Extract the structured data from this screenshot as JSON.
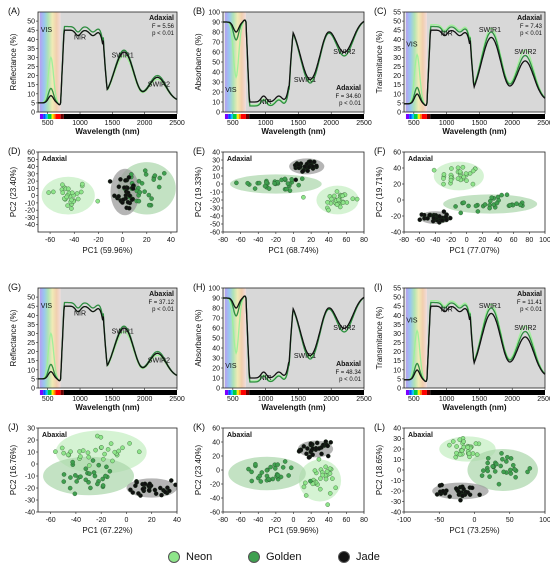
{
  "colors": {
    "neon_fill": "#8ee58a",
    "neon_line": "#9ff09a",
    "golden_fill": "#3f9f4f",
    "golden_line": "#2e8d40",
    "jade_fill": "#111111",
    "jade_line": "#111111",
    "plot_bg": "#e6e6e6",
    "ellipse_neon": "#c3eec0",
    "ellipse_golden": "#a9d6a9",
    "ellipse_jade": "#9c9c9c"
  },
  "legend": [
    {
      "name": "Neon",
      "color": "#8ee58a"
    },
    {
      "name": "Golden",
      "color": "#3f9f4f"
    },
    {
      "name": "Jade",
      "color": "#111111"
    }
  ],
  "chart_data": [
    {
      "id": "A",
      "type": "line",
      "panel_label": "(A)",
      "ylabel": "Reflectance (%)",
      "xlabel": "Wavelength (nm)",
      "xlim": [
        350,
        2500
      ],
      "ylim": [
        0,
        55
      ],
      "xticks": [
        500,
        1000,
        1500,
        2000,
        2500
      ],
      "yticks": [
        0,
        5,
        10,
        15,
        20,
        25,
        30,
        35,
        40,
        45,
        50
      ],
      "regions": [
        "VIS",
        "NIR",
        "SWIR1",
        "SWIR2"
      ],
      "side": "Adaxial",
      "stat_f": "F = 5.56",
      "stat_p": "p < 0.01"
    },
    {
      "id": "B",
      "type": "line",
      "panel_label": "(B)",
      "ylabel": "Absorbance (%)",
      "xlabel": "Wavelength (nm)",
      "xlim": [
        350,
        2500
      ],
      "ylim": [
        0,
        100
      ],
      "xticks": [
        500,
        1000,
        1500,
        2000,
        2500
      ],
      "yticks": [
        0,
        10,
        20,
        30,
        40,
        50,
        60,
        70,
        80,
        90,
        100
      ],
      "regions": [
        "VIS",
        "NIR",
        "SWIR1",
        "SWIR2"
      ],
      "side": "Adaxial",
      "stat_f": "F = 34.60",
      "stat_p": "p < 0.01"
    },
    {
      "id": "C",
      "type": "line",
      "panel_label": "(C)",
      "ylabel": "Transmitance (%)",
      "xlabel": "Wavelength (nm)",
      "xlim": [
        350,
        2500
      ],
      "ylim": [
        0,
        55
      ],
      "xticks": [
        500,
        1000,
        1500,
        2000,
        2500
      ],
      "yticks": [
        0,
        5,
        10,
        15,
        20,
        25,
        30,
        35,
        40,
        45,
        50,
        55
      ],
      "regions": [
        "VIS",
        "NIR",
        "SWIR1",
        "SWIR2"
      ],
      "side": "Adaxial",
      "stat_f": "F = 7.43",
      "stat_p": "p < 0.01"
    },
    {
      "id": "D",
      "type": "scatter",
      "panel_label": "(D)",
      "side": "Adaxial",
      "xlabel": "PC1 (59.96%)",
      "ylabel": "PC2 (23.40%)",
      "xlim": [
        -70,
        45
      ],
      "ylim": [
        -50,
        60
      ],
      "xticks": [
        -60,
        -40,
        -20,
        0,
        20,
        40
      ],
      "yticks": [
        -40,
        -30,
        -20,
        -10,
        0,
        10,
        20,
        30,
        40,
        50,
        60
      ],
      "clusters": [
        {
          "name": "Neon",
          "cx": -45,
          "cy": 0,
          "sx": 11,
          "sy": 13
        },
        {
          "name": "Golden",
          "cx": 20,
          "cy": 10,
          "sx": 12,
          "sy": 18
        },
        {
          "name": "Jade",
          "cx": 2,
          "cy": 5,
          "sx": 6,
          "sy": 16
        }
      ]
    },
    {
      "id": "E",
      "type": "scatter",
      "panel_label": "(E)",
      "side": "Adaxial",
      "xlabel": "PC1 (68.74%)",
      "ylabel": "PC2 (19.33%)",
      "xlim": [
        -80,
        80
      ],
      "ylim": [
        -60,
        40
      ],
      "xticks": [
        -80,
        -60,
        -40,
        -20,
        0,
        20,
        40,
        60,
        80
      ],
      "yticks": [
        -60,
        -50,
        -40,
        -30,
        -20,
        -10,
        0,
        10,
        20,
        30,
        40
      ],
      "clusters": [
        {
          "name": "Neon",
          "cx": 50,
          "cy": -20,
          "sx": 12,
          "sy": 9
        },
        {
          "name": "Golden",
          "cx": -20,
          "cy": 0,
          "sx": 26,
          "sy": 6
        },
        {
          "name": "Jade",
          "cx": 15,
          "cy": 22,
          "sx": 10,
          "sy": 5
        }
      ]
    },
    {
      "id": "F",
      "type": "scatter",
      "panel_label": "(F)",
      "side": "Adaxial",
      "xlabel": "PC1 (77.07%)",
      "ylabel": "PC2 (19.71%)",
      "xlim": [
        -80,
        100
      ],
      "ylim": [
        -40,
        60
      ],
      "xticks": [
        -80,
        -60,
        -40,
        -20,
        0,
        20,
        40,
        60,
        80,
        100
      ],
      "yticks": [
        -40,
        -20,
        0,
        20,
        40,
        60
      ],
      "clusters": [
        {
          "name": "Neon",
          "cx": -10,
          "cy": 30,
          "sx": 16,
          "sy": 9
        },
        {
          "name": "Golden",
          "cx": 30,
          "cy": -5,
          "sx": 30,
          "sy": 6
        },
        {
          "name": "Jade",
          "cx": -40,
          "cy": -22,
          "sx": 10,
          "sy": 4
        }
      ]
    },
    {
      "id": "G",
      "type": "line",
      "panel_label": "(G)",
      "ylabel": "Reflectance (%)",
      "xlabel": "Wavelength (nm)",
      "xlim": [
        350,
        2500
      ],
      "ylim": [
        0,
        55
      ],
      "xticks": [
        500,
        1000,
        1500,
        2000,
        2500
      ],
      "yticks": [
        0,
        5,
        10,
        15,
        20,
        25,
        30,
        35,
        40,
        45,
        50
      ],
      "regions": [
        "VIS",
        "NIR",
        "SWIR1",
        "SWIR2"
      ],
      "side": "Abaxial",
      "stat_f": "F = 37.12",
      "stat_p": "p < 0.01"
    },
    {
      "id": "H",
      "type": "line",
      "panel_label": "(H)",
      "ylabel": "Absorbance (%)",
      "xlabel": "Wavelength (nm)",
      "xlim": [
        350,
        2500
      ],
      "ylim": [
        0,
        100
      ],
      "xticks": [
        500,
        1000,
        1500,
        2000,
        2500
      ],
      "yticks": [
        0,
        10,
        20,
        30,
        40,
        50,
        60,
        70,
        80,
        90,
        100
      ],
      "regions": [
        "VIS",
        "NIR",
        "SWIR1",
        "SWIR2"
      ],
      "side": "Abaxial",
      "stat_f": "F = 48.34",
      "stat_p": "p < 0.01"
    },
    {
      "id": "I",
      "type": "line",
      "panel_label": "(I)",
      "ylabel": "Transmitance (%)",
      "xlabel": "Wavelength (nm)",
      "xlim": [
        350,
        2500
      ],
      "ylim": [
        0,
        55
      ],
      "xticks": [
        500,
        1000,
        1500,
        2000,
        2500
      ],
      "yticks": [
        0,
        5,
        10,
        15,
        20,
        25,
        30,
        35,
        40,
        45,
        50,
        55
      ],
      "regions": [
        "VIS",
        "NIR",
        "SWIR1",
        "SWIR2"
      ],
      "side": "Abaxial",
      "stat_f": "F = 11.41",
      "stat_p": "p < 0.01"
    },
    {
      "id": "J",
      "type": "scatter",
      "panel_label": "(J)",
      "side": "Abaxial",
      "xlabel": "PC1 (67.22%)",
      "ylabel": "PC2 (16.76%)",
      "xlim": [
        -70,
        40
      ],
      "ylim": [
        -40,
        30
      ],
      "xticks": [
        -60,
        -40,
        -20,
        0,
        20,
        40
      ],
      "yticks": [
        -40,
        -30,
        -20,
        -10,
        0,
        10,
        20,
        30
      ],
      "clusters": [
        {
          "name": "Neon",
          "cx": -20,
          "cy": 10,
          "sx": 18,
          "sy": 9
        },
        {
          "name": "Golden",
          "cx": -30,
          "cy": -10,
          "sx": 18,
          "sy": 8
        },
        {
          "name": "Jade",
          "cx": 20,
          "cy": -20,
          "sx": 10,
          "sy": 4
        }
      ]
    },
    {
      "id": "K",
      "type": "scatter",
      "panel_label": "(K)",
      "side": "Abaxial",
      "xlabel": "PC1 (59.96%)",
      "ylabel": "PC2 (23.40%)",
      "xlim": [
        -80,
        80
      ],
      "ylim": [
        -60,
        60
      ],
      "xticks": [
        -80,
        -60,
        -40,
        -20,
        0,
        20,
        40,
        60,
        80
      ],
      "yticks": [
        -60,
        -40,
        -20,
        0,
        20,
        40,
        60
      ],
      "clusters": [
        {
          "name": "Neon",
          "cx": 30,
          "cy": -15,
          "sx": 12,
          "sy": 15
        },
        {
          "name": "Golden",
          "cx": -30,
          "cy": -5,
          "sx": 22,
          "sy": 12
        },
        {
          "name": "Jade",
          "cx": 25,
          "cy": 30,
          "sx": 10,
          "sy": 6
        }
      ]
    },
    {
      "id": "L",
      "type": "scatter",
      "panel_label": "(L)",
      "side": "Abaxial",
      "xlabel": "PC1 (73.25%)",
      "ylabel": "PC2 (18.65%)",
      "xlim": [
        -100,
        100
      ],
      "ylim": [
        -40,
        40
      ],
      "xticks": [
        -100,
        -50,
        0,
        50,
        100
      ],
      "yticks": [
        -40,
        -30,
        -20,
        -10,
        0,
        10,
        20,
        30,
        40
      ],
      "clusters": [
        {
          "name": "Neon",
          "cx": -10,
          "cy": 20,
          "sx": 20,
          "sy": 6
        },
        {
          "name": "Golden",
          "cx": 40,
          "cy": 0,
          "sx": 25,
          "sy": 10
        },
        {
          "name": "Jade",
          "cx": -20,
          "cy": -20,
          "sx": 20,
          "sy": 4
        }
      ]
    }
  ]
}
